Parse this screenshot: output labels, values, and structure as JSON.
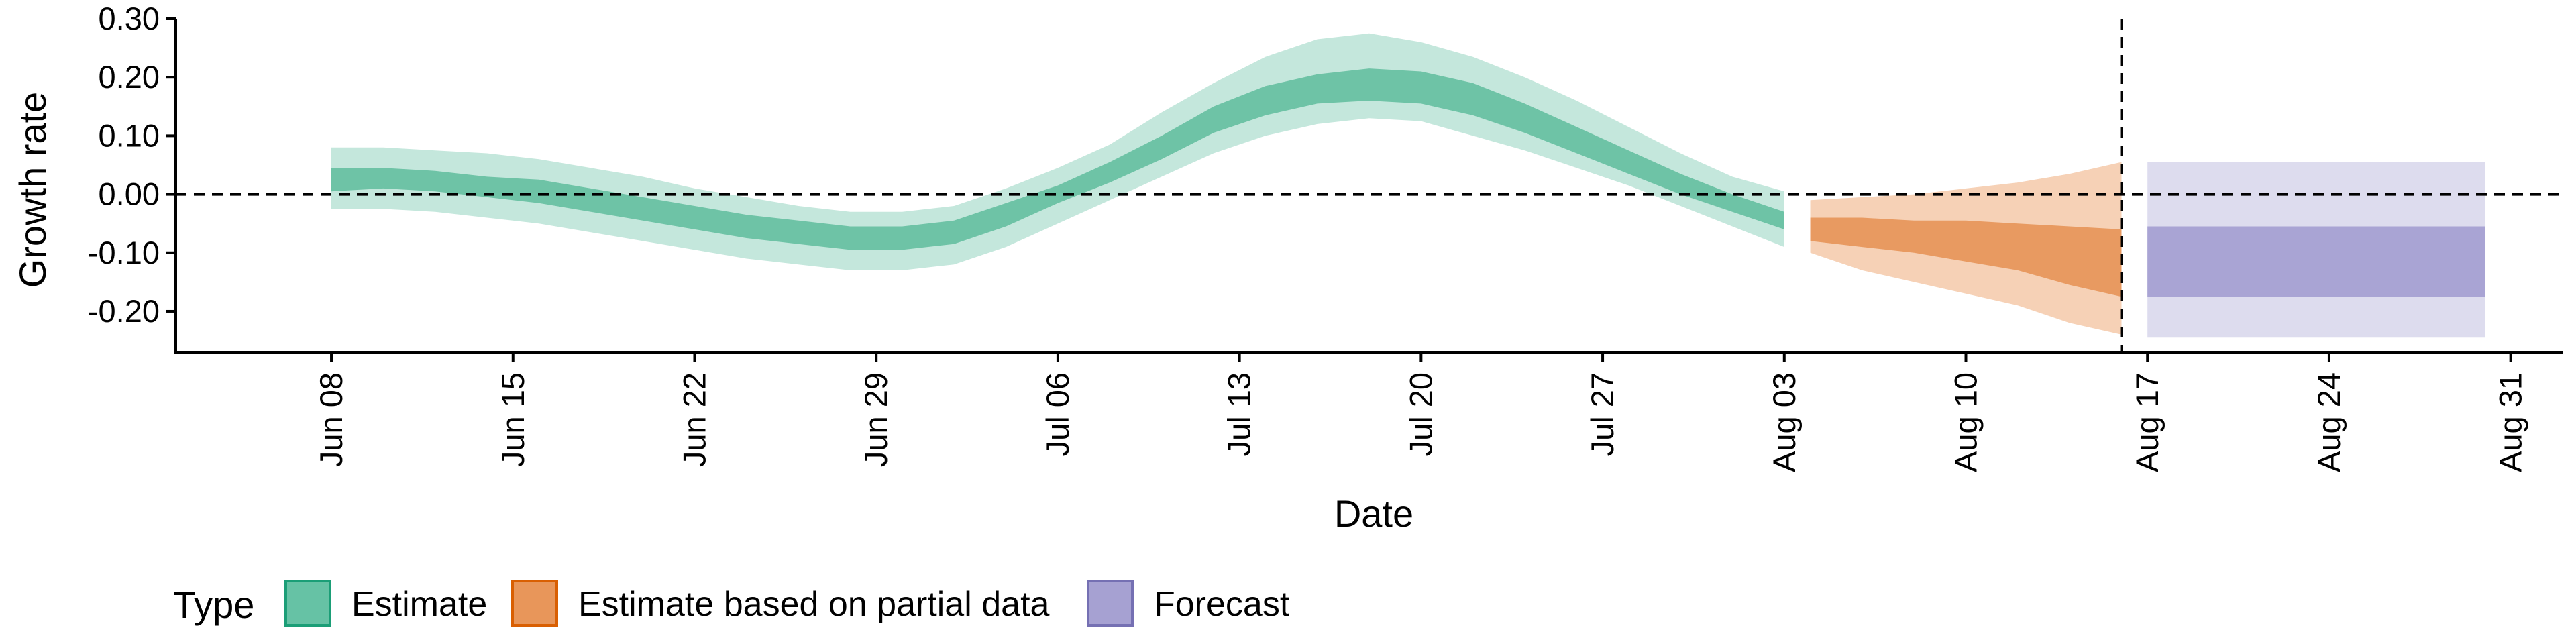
{
  "chart_data": {
    "type": "area",
    "xlabel": "Date",
    "ylabel": "Growth rate",
    "ylim": [
      -0.27,
      0.3
    ],
    "y_ticks": [
      -0.2,
      -0.1,
      0.0,
      0.1,
      0.2,
      0.3
    ],
    "y_tick_labels": [
      "-0.20",
      "-0.10",
      "0.00",
      "0.10",
      "0.20",
      "0.30"
    ],
    "x_range": [
      "2020-06-02",
      "2020-09-02"
    ],
    "x_ticks": [
      "2020-06-08",
      "2020-06-15",
      "2020-06-22",
      "2020-06-29",
      "2020-07-06",
      "2020-07-13",
      "2020-07-20",
      "2020-07-27",
      "2020-08-03",
      "2020-08-10",
      "2020-08-17",
      "2020-08-24",
      "2020-08-31"
    ],
    "x_tick_labels": [
      "Jun 08",
      "Jun 15",
      "Jun 22",
      "Jun 29",
      "Jul 06",
      "Jul 13",
      "Jul 20",
      "Jul 27",
      "Aug 03",
      "Aug 10",
      "Aug 17",
      "Aug 24",
      "Aug 31"
    ],
    "reference_lines": {
      "horizontal_y": 0.0,
      "vertical_x": "2020-08-16"
    },
    "legend": {
      "title": "Type",
      "position": "bottom",
      "items": [
        {
          "label": "Estimate",
          "fill": "#66c2a5",
          "border": "#1b9e77"
        },
        {
          "label": "Estimate based on partial data",
          "fill": "#e8965a",
          "border": "#d95f02"
        },
        {
          "label": "Forecast",
          "fill": "#a6a1d2",
          "border": "#7570b3"
        }
      ]
    },
    "series": [
      {
        "name": "Estimate",
        "color_outer": "#c4e7dc",
        "color_inner": "#6ec3a6",
        "points": [
          {
            "x": "2020-06-08",
            "lo90": -0.025,
            "lo50": 0.005,
            "hi50": 0.045,
            "hi90": 0.08
          },
          {
            "x": "2020-06-10",
            "lo90": -0.025,
            "lo50": 0.01,
            "hi50": 0.045,
            "hi90": 0.08
          },
          {
            "x": "2020-06-12",
            "lo90": -0.03,
            "lo50": 0.005,
            "hi50": 0.04,
            "hi90": 0.075
          },
          {
            "x": "2020-06-14",
            "lo90": -0.04,
            "lo50": -0.005,
            "hi50": 0.03,
            "hi90": 0.07
          },
          {
            "x": "2020-06-16",
            "lo90": -0.05,
            "lo50": -0.015,
            "hi50": 0.025,
            "hi90": 0.06
          },
          {
            "x": "2020-06-18",
            "lo90": -0.065,
            "lo50": -0.03,
            "hi50": 0.01,
            "hi90": 0.045
          },
          {
            "x": "2020-06-20",
            "lo90": -0.08,
            "lo50": -0.045,
            "hi50": -0.005,
            "hi90": 0.03
          },
          {
            "x": "2020-06-22",
            "lo90": -0.095,
            "lo50": -0.06,
            "hi50": -0.02,
            "hi90": 0.01
          },
          {
            "x": "2020-06-24",
            "lo90": -0.11,
            "lo50": -0.075,
            "hi50": -0.035,
            "hi90": -0.005
          },
          {
            "x": "2020-06-26",
            "lo90": -0.12,
            "lo50": -0.085,
            "hi50": -0.045,
            "hi90": -0.02
          },
          {
            "x": "2020-06-28",
            "lo90": -0.13,
            "lo50": -0.095,
            "hi50": -0.055,
            "hi90": -0.03
          },
          {
            "x": "2020-06-30",
            "lo90": -0.13,
            "lo50": -0.095,
            "hi50": -0.055,
            "hi90": -0.03
          },
          {
            "x": "2020-07-02",
            "lo90": -0.12,
            "lo50": -0.085,
            "hi50": -0.045,
            "hi90": -0.02
          },
          {
            "x": "2020-07-04",
            "lo90": -0.09,
            "lo50": -0.055,
            "hi50": -0.015,
            "hi90": 0.01
          },
          {
            "x": "2020-07-06",
            "lo90": -0.05,
            "lo50": -0.015,
            "hi50": 0.015,
            "hi90": 0.045
          },
          {
            "x": "2020-07-08",
            "lo90": -0.01,
            "lo50": 0.02,
            "hi50": 0.055,
            "hi90": 0.085
          },
          {
            "x": "2020-07-10",
            "lo90": 0.03,
            "lo50": 0.06,
            "hi50": 0.1,
            "hi90": 0.14
          },
          {
            "x": "2020-07-12",
            "lo90": 0.07,
            "lo50": 0.105,
            "hi50": 0.15,
            "hi90": 0.19
          },
          {
            "x": "2020-07-14",
            "lo90": 0.1,
            "lo50": 0.135,
            "hi50": 0.185,
            "hi90": 0.235
          },
          {
            "x": "2020-07-16",
            "lo90": 0.12,
            "lo50": 0.155,
            "hi50": 0.205,
            "hi90": 0.265
          },
          {
            "x": "2020-07-18",
            "lo90": 0.13,
            "lo50": 0.16,
            "hi50": 0.215,
            "hi90": 0.275
          },
          {
            "x": "2020-07-20",
            "lo90": 0.125,
            "lo50": 0.155,
            "hi50": 0.21,
            "hi90": 0.26
          },
          {
            "x": "2020-07-22",
            "lo90": 0.1,
            "lo50": 0.135,
            "hi50": 0.19,
            "hi90": 0.235
          },
          {
            "x": "2020-07-24",
            "lo90": 0.075,
            "lo50": 0.105,
            "hi50": 0.155,
            "hi90": 0.2
          },
          {
            "x": "2020-07-26",
            "lo90": 0.045,
            "lo50": 0.07,
            "hi50": 0.115,
            "hi90": 0.16
          },
          {
            "x": "2020-07-28",
            "lo90": 0.015,
            "lo50": 0.035,
            "hi50": 0.075,
            "hi90": 0.115
          },
          {
            "x": "2020-07-30",
            "lo90": -0.02,
            "lo50": 0.0,
            "hi50": 0.035,
            "hi90": 0.07
          },
          {
            "x": "2020-08-01",
            "lo90": -0.055,
            "lo50": -0.03,
            "hi50": 0.0,
            "hi90": 0.03
          },
          {
            "x": "2020-08-03",
            "lo90": -0.09,
            "lo50": -0.06,
            "hi50": -0.03,
            "hi90": 0.005
          }
        ]
      },
      {
        "name": "Estimate based on partial data",
        "color_outer": "#f6d1b6",
        "color_inner": "#e89a61",
        "points": [
          {
            "x": "2020-08-04",
            "lo90": -0.1,
            "lo50": -0.08,
            "hi50": -0.04,
            "hi90": -0.01
          },
          {
            "x": "2020-08-06",
            "lo90": -0.13,
            "lo50": -0.09,
            "hi50": -0.04,
            "hi90": -0.005
          },
          {
            "x": "2020-08-08",
            "lo90": -0.15,
            "lo50": -0.1,
            "hi50": -0.045,
            "hi90": 0.0
          },
          {
            "x": "2020-08-10",
            "lo90": -0.17,
            "lo50": -0.115,
            "hi50": -0.045,
            "hi90": 0.01
          },
          {
            "x": "2020-08-12",
            "lo90": -0.19,
            "lo50": -0.13,
            "hi50": -0.05,
            "hi90": 0.02
          },
          {
            "x": "2020-08-14",
            "lo90": -0.22,
            "lo50": -0.155,
            "hi50": -0.055,
            "hi90": 0.035
          },
          {
            "x": "2020-08-16",
            "lo90": -0.24,
            "lo50": -0.175,
            "hi50": -0.06,
            "hi90": 0.055
          }
        ]
      },
      {
        "name": "Forecast",
        "color_outer": "#dddcee",
        "color_inner": "#a9a4d4",
        "points": [
          {
            "x": "2020-08-17",
            "lo90": -0.245,
            "lo50": -0.175,
            "hi50": -0.055,
            "hi90": 0.055
          },
          {
            "x": "2020-08-30",
            "lo90": -0.245,
            "lo50": -0.175,
            "hi50": -0.055,
            "hi90": 0.055
          }
        ]
      }
    ]
  }
}
